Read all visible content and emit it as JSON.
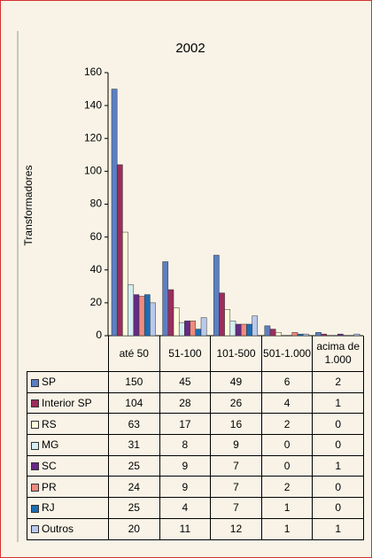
{
  "chart_data": {
    "type": "bar",
    "title": "2002",
    "y_label": "Transformadores",
    "categories": [
      "até 50",
      "51-100",
      "101-500",
      "501-1.000",
      "acima de 1.000"
    ],
    "series": [
      {
        "name": "SP",
        "color": "#5b7fc4",
        "values": [
          150,
          45,
          49,
          6,
          2
        ]
      },
      {
        "name": "Interior SP",
        "color": "#9c2d5c",
        "values": [
          104,
          28,
          26,
          4,
          1
        ]
      },
      {
        "name": "RS",
        "color": "#fffbdc",
        "values": [
          63,
          17,
          16,
          2,
          0
        ]
      },
      {
        "name": "MG",
        "color": "#d4eef2",
        "values": [
          31,
          8,
          9,
          0,
          0
        ]
      },
      {
        "name": "SC",
        "color": "#652a83",
        "values": [
          25,
          9,
          7,
          0,
          1
        ]
      },
      {
        "name": "PR",
        "color": "#f08a7e",
        "values": [
          24,
          9,
          7,
          2,
          0
        ]
      },
      {
        "name": "RJ",
        "color": "#1d6db3",
        "values": [
          25,
          4,
          7,
          1,
          0
        ]
      },
      {
        "name": "Outros",
        "color": "#b9c9ee",
        "values": [
          20,
          11,
          12,
          1,
          1
        ]
      }
    ],
    "ylim": [
      0,
      160
    ],
    "yticks": [
      0,
      20,
      40,
      60,
      80,
      100,
      120,
      140,
      160
    ],
    "grid": false
  }
}
